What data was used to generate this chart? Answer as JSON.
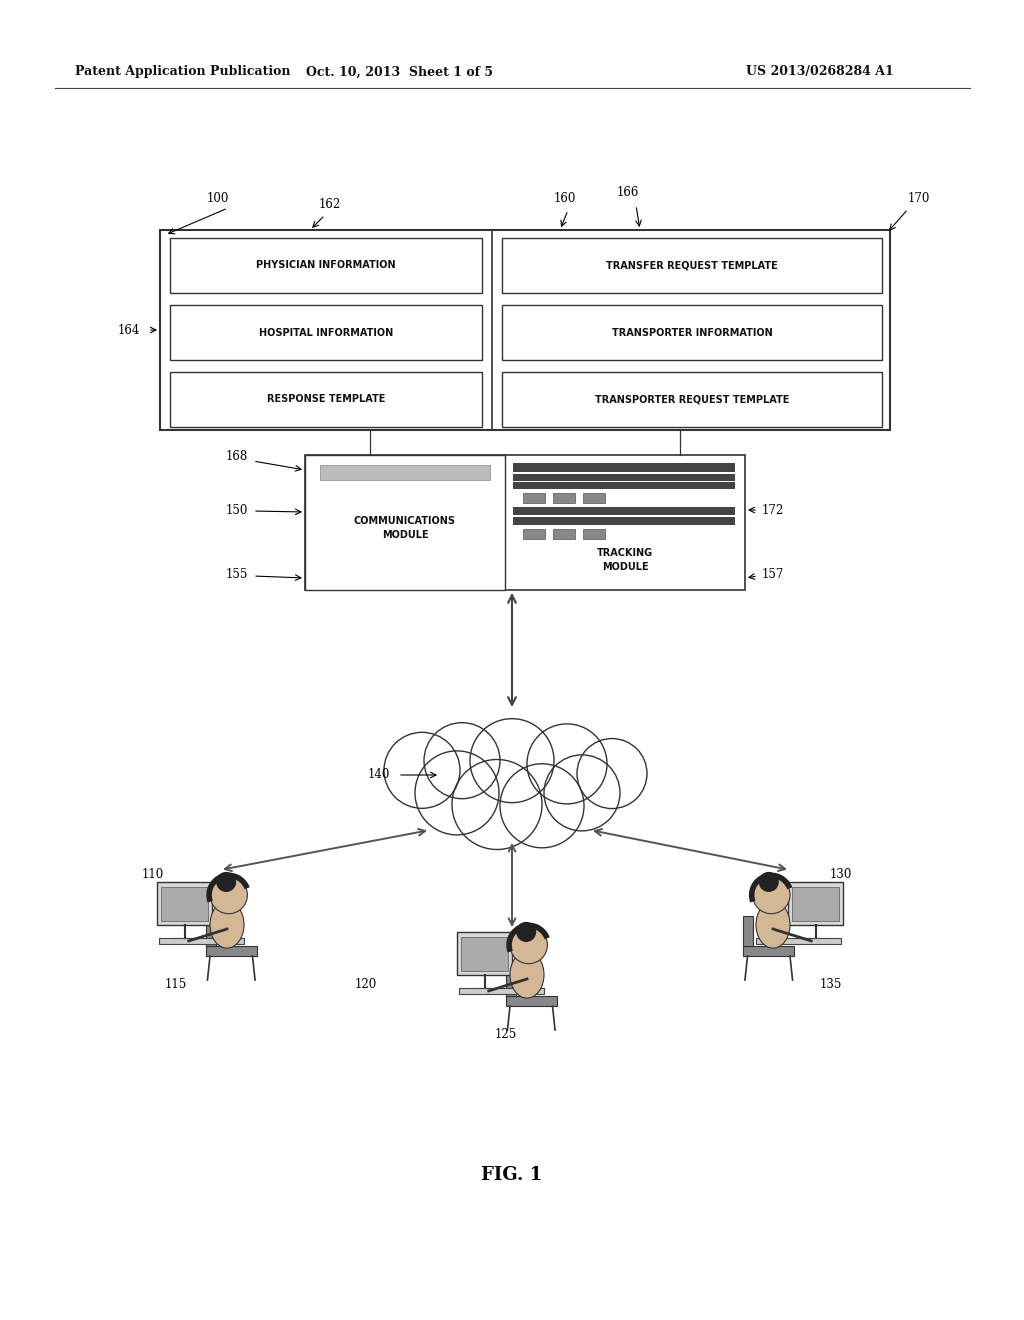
{
  "header_left": "Patent Application Publication",
  "header_mid": "Oct. 10, 2013  Sheet 1 of 5",
  "header_right": "US 2013/0268284 A1",
  "fig_label": "FIG. 1",
  "bg_color": "#ffffff",
  "inner_boxes": [
    {
      "label": "PHYSICIAN INFORMATION",
      "col": 0,
      "row": 0
    },
    {
      "label": "TRANSFER REQUEST TEMPLATE",
      "col": 1,
      "row": 0
    },
    {
      "label": "HOSPITAL INFORMATION",
      "col": 0,
      "row": 1
    },
    {
      "label": "TRANSPORTER INFORMATION",
      "col": 1,
      "row": 1
    },
    {
      "label": "RESPONSE TEMPLATE",
      "col": 0,
      "row": 2
    },
    {
      "label": "TRANSPORTER REQUEST TEMPLATE",
      "col": 1,
      "row": 2
    }
  ],
  "comm_label": "COMMUNICATIONS\nMODULE",
  "track_label": "TRACKING\nMODULE"
}
